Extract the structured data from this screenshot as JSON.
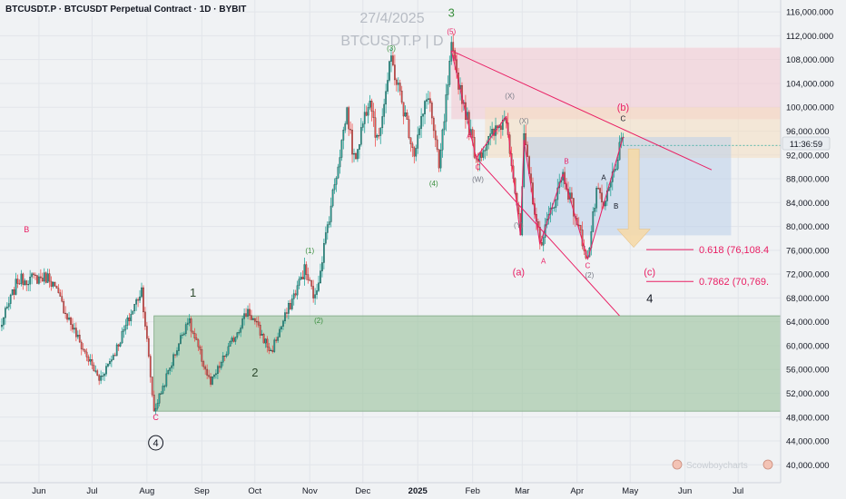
{
  "header": {
    "symbol_line": "BTCUSDT.P · BTCUSDT Perpetual Contract · 1D · BYBIT"
  },
  "watermark": {
    "date": "27/4/2025",
    "symbol": "BTCUSDT.P | D"
  },
  "price_label": {
    "countdown": "11:36:59"
  },
  "branding": {
    "text": "Scowboycharts"
  },
  "colors": {
    "up_candle": "#26a69a",
    "down_candle": "#ef5350",
    "wave_red": "#e91e63",
    "wave_green": "#388e3c",
    "wave_gray": "#787b86",
    "support_zone": "#a5c9a8",
    "target_arrow": "#f5d9a8"
  },
  "chart_data": {
    "type": "candlestick",
    "title": "BTCUSDT.P · BTCUSDT Perpetual Contract · 1D · BYBIT",
    "xlabel": "",
    "ylabel": "",
    "x_range": [
      "2024-05-10",
      "2025-07-25"
    ],
    "ylim": [
      37000000,
      118000000
    ],
    "grid": true,
    "x_ticks": [
      {
        "label": "Jun",
        "date": "2024-06-01",
        "bold": false
      },
      {
        "label": "Jul",
        "date": "2024-07-01",
        "bold": false
      },
      {
        "label": "Aug",
        "date": "2024-08-01",
        "bold": false
      },
      {
        "label": "Sep",
        "date": "2024-09-01",
        "bold": false
      },
      {
        "label": "Oct",
        "date": "2024-10-01",
        "bold": false
      },
      {
        "label": "Nov",
        "date": "2024-11-01",
        "bold": false
      },
      {
        "label": "Dec",
        "date": "2024-12-01",
        "bold": false
      },
      {
        "label": "2025",
        "date": "2025-01-01",
        "bold": true
      },
      {
        "label": "Feb",
        "date": "2025-02-01",
        "bold": false
      },
      {
        "label": "Mar",
        "date": "2025-03-01",
        "bold": false
      },
      {
        "label": "Apr",
        "date": "2025-04-01",
        "bold": false
      },
      {
        "label": "May",
        "date": "2025-05-01",
        "bold": false
      },
      {
        "label": "Jun",
        "date": "2025-06-01",
        "bold": false
      },
      {
        "label": "Jul",
        "date": "2025-07-01",
        "bold": false
      }
    ],
    "y_ticks": [
      {
        "label": "40,000.000",
        "value": 40000000
      },
      {
        "label": "44,000.000",
        "value": 44000000
      },
      {
        "label": "48,000.000",
        "value": 48000000
      },
      {
        "label": "52,000.000",
        "value": 52000000
      },
      {
        "label": "56,000.000",
        "value": 56000000
      },
      {
        "label": "60,000.000",
        "value": 60000000
      },
      {
        "label": "64,000.000",
        "value": 64000000
      },
      {
        "label": "68,000.000",
        "value": 68000000
      },
      {
        "label": "72,000.000",
        "value": 72000000
      },
      {
        "label": "76,000.000",
        "value": 76000000
      },
      {
        "label": "80,000.000",
        "value": 80000000
      },
      {
        "label": "84,000.000",
        "value": 84000000
      },
      {
        "label": "88,000.000",
        "value": 88000000
      },
      {
        "label": "92,000.000",
        "value": 92000000
      },
      {
        "label": "96,000.000",
        "value": 96000000
      },
      {
        "label": "100,000.000",
        "value": 100000000
      },
      {
        "label": "104,000.000",
        "value": 104000000
      },
      {
        "label": "108,000.000",
        "value": 108000000
      },
      {
        "label": "112,000.000",
        "value": 112000000
      },
      {
        "label": "116,000.000",
        "value": 116000000
      }
    ],
    "price_path": [
      [
        "2024-05-10",
        63000000
      ],
      [
        "2024-05-20",
        71000000
      ],
      [
        "2024-06-07",
        71500000
      ],
      [
        "2024-06-24",
        60500000
      ],
      [
        "2024-07-05",
        54300000
      ],
      [
        "2024-07-14",
        59000000
      ],
      [
        "2024-07-29",
        69500000
      ],
      [
        "2024-08-05",
        49000000
      ],
      [
        "2024-08-24",
        64500000
      ],
      [
        "2024-09-06",
        53500000
      ],
      [
        "2024-09-27",
        66000000
      ],
      [
        "2024-10-10",
        58900000
      ],
      [
        "2024-10-29",
        72800000
      ],
      [
        "2024-11-04",
        67800000
      ],
      [
        "2024-11-22",
        99500000
      ],
      [
        "2024-11-26",
        91000000
      ],
      [
        "2024-12-05",
        102500000
      ],
      [
        "2024-12-09",
        94000000
      ],
      [
        "2024-12-17",
        108000000
      ],
      [
        "2024-12-30",
        92500000
      ],
      [
        "2025-01-07",
        102500000
      ],
      [
        "2025-01-13",
        89500000
      ],
      [
        "2025-01-20",
        109500000
      ],
      [
        "2025-02-03",
        91500000
      ],
      [
        "2025-02-20",
        98500000
      ],
      [
        "2025-02-28",
        78500000
      ],
      [
        "2025-03-02",
        94500000
      ],
      [
        "2025-03-11",
        77000000
      ],
      [
        "2025-03-24",
        88800000
      ],
      [
        "2025-04-07",
        74500000
      ],
      [
        "2025-04-12",
        86000000
      ],
      [
        "2025-04-16",
        83000000
      ],
      [
        "2025-04-27",
        95000000
      ]
    ],
    "last_price": {
      "value": 93600000,
      "countdown": "11:36:59"
    },
    "zones": [
      {
        "name": "support",
        "from": "2024-08-05",
        "to": "2025-07-25",
        "low": 49000000,
        "high": 65000000,
        "color": "#a5c9a8"
      },
      {
        "name": "upper-red",
        "from": "2025-01-20",
        "to": "2025-07-25",
        "low": 98000000,
        "high": 110000000,
        "color": "#f4c7cf"
      },
      {
        "name": "upper-orange",
        "from": "2025-02-08",
        "to": "2025-07-25",
        "low": 91500000,
        "high": 100000000,
        "color": "#f6dfbf"
      },
      {
        "name": "blue",
        "from": "2025-03-02",
        "to": "2025-06-27",
        "low": 78500000,
        "high": 95000000,
        "color": "#bcd0ea"
      }
    ],
    "levels": [
      {
        "label": "0.618 (76,108.4",
        "value": 76108400,
        "color": "#e91e63"
      },
      {
        "label": "0.7862 (70,769.",
        "value": 70769000,
        "color": "#e91e63"
      }
    ],
    "trendlines": [
      {
        "from": [
          "2025-01-20",
          109500000
        ],
        "to": [
          "2025-06-16",
          89500000
        ],
        "color": "#e91e63"
      },
      {
        "from": [
          "2025-02-03",
          91500000
        ],
        "to": [
          "2025-04-25",
          65000000
        ],
        "color": "#e91e63"
      },
      {
        "from": [
          "2025-01-20",
          109500000
        ],
        "to": [
          "2025-02-03",
          91500000
        ],
        "color": "#e91e63"
      },
      {
        "from": [
          "2025-02-03",
          91500000
        ],
        "to": [
          "2025-02-20",
          98500000
        ],
        "color": "#e91e63"
      },
      {
        "from": [
          "2025-02-20",
          98500000
        ],
        "to": [
          "2025-02-28",
          78500000
        ],
        "color": "#e91e63"
      },
      {
        "from": [
          "2025-02-28",
          78500000
        ],
        "to": [
          "2025-03-02",
          94500000
        ],
        "color": "#e91e63"
      },
      {
        "from": [
          "2025-03-02",
          94500000
        ],
        "to": [
          "2025-03-11",
          77000000
        ],
        "color": "#e91e63"
      },
      {
        "from": [
          "2025-03-11",
          77000000
        ],
        "to": [
          "2025-03-24",
          88800000
        ],
        "color": "#e91e63"
      },
      {
        "from": [
          "2025-03-24",
          88800000
        ],
        "to": [
          "2025-04-07",
          74500000
        ],
        "color": "#e91e63"
      },
      {
        "from": [
          "2025-04-07",
          74500000
        ],
        "to": [
          "2025-04-27",
          95000000
        ],
        "color": "#e91e63"
      }
    ],
    "target_arrow": {
      "date": "2025-05-03",
      "from": 93000000,
      "to": 76500000,
      "color": "#f5d9a8"
    },
    "annotations": [
      {
        "text": "B",
        "date": "2024-05-25",
        "price": 79000000,
        "color": "#e91e63",
        "size": 9
      },
      {
        "text": "1",
        "date": "2024-08-27",
        "price": 68200000,
        "color": "#2e4a2e",
        "size": 13
      },
      {
        "text": "2",
        "date": "2024-10-01",
        "price": 54800000,
        "color": "#2e4a2e",
        "size": 13
      },
      {
        "text": "C",
        "date": "2024-08-06",
        "price": 47500000,
        "color": "#e91e63",
        "size": 9
      },
      {
        "text": "4",
        "date": "2024-08-06",
        "price": 43100000,
        "color": "#131722",
        "size": 11,
        "circled": true
      },
      {
        "text": "(1)",
        "date": "2024-11-01",
        "price": 75500000,
        "color": "#388e3c",
        "size": 8
      },
      {
        "text": "(2)",
        "date": "2024-11-06",
        "price": 63800000,
        "color": "#388e3c",
        "size": 8
      },
      {
        "text": "(3)",
        "date": "2024-12-17",
        "price": 109500000,
        "color": "#388e3c",
        "size": 8
      },
      {
        "text": "(4)",
        "date": "2025-01-10",
        "price": 86800000,
        "color": "#388e3c",
        "size": 8
      },
      {
        "text": "(5)",
        "date": "2025-01-20",
        "price": 112300000,
        "color": "#e91e63",
        "size": 8
      },
      {
        "text": "3",
        "date": "2025-01-20",
        "price": 115200000,
        "color": "#388e3c",
        "size": 13
      },
      {
        "text": "B",
        "date": "2025-01-22",
        "price": 107800000,
        "color": "#e91e63",
        "size": 8
      },
      {
        "text": "A",
        "date": "2025-01-30",
        "price": 94800000,
        "color": "#e91e63",
        "size": 8
      },
      {
        "text": "C",
        "date": "2025-02-04",
        "price": 89500000,
        "color": "#e91e63",
        "size": 8
      },
      {
        "text": "(W)",
        "date": "2025-02-04",
        "price": 87500000,
        "color": "#787b86",
        "size": 8
      },
      {
        "text": "(X)",
        "date": "2025-02-22",
        "price": 101500000,
        "color": "#787b86",
        "size": 8
      },
      {
        "text": "(X)",
        "date": "2025-03-02",
        "price": 97300000,
        "color": "#787b86",
        "size": 8
      },
      {
        "text": "(Y)",
        "date": "2025-02-27",
        "price": 79800000,
        "color": "#787b86",
        "size": 8
      },
      {
        "text": "(a)",
        "date": "2025-02-27",
        "price": 71800000,
        "color": "#e91e63",
        "size": 11
      },
      {
        "text": "A",
        "date": "2025-03-13",
        "price": 73800000,
        "color": "#e91e63",
        "size": 8
      },
      {
        "text": "B",
        "date": "2025-03-26",
        "price": 90500000,
        "color": "#e91e63",
        "size": 8
      },
      {
        "text": "C",
        "date": "2025-04-07",
        "price": 73000000,
        "color": "#e91e63",
        "size": 8
      },
      {
        "text": "(2)",
        "date": "2025-04-08",
        "price": 71400000,
        "color": "#787b86",
        "size": 8
      },
      {
        "text": "A",
        "date": "2025-04-16",
        "price": 87800000,
        "color": "#131722",
        "size": 8
      },
      {
        "text": "B",
        "date": "2025-04-23",
        "price": 83000000,
        "color": "#131722",
        "size": 8
      },
      {
        "text": "C",
        "date": "2025-04-27",
        "price": 97700000,
        "color": "#131722",
        "size": 8
      },
      {
        "text": "(b)",
        "date": "2025-04-27",
        "price": 99400000,
        "color": "#e91e63",
        "size": 11
      },
      {
        "text": "(c)",
        "date": "2025-05-12",
        "price": 71800000,
        "color": "#e91e63",
        "size": 11
      },
      {
        "text": "4",
        "date": "2025-05-12",
        "price": 67200000,
        "color": "#131722",
        "size": 13
      }
    ]
  }
}
